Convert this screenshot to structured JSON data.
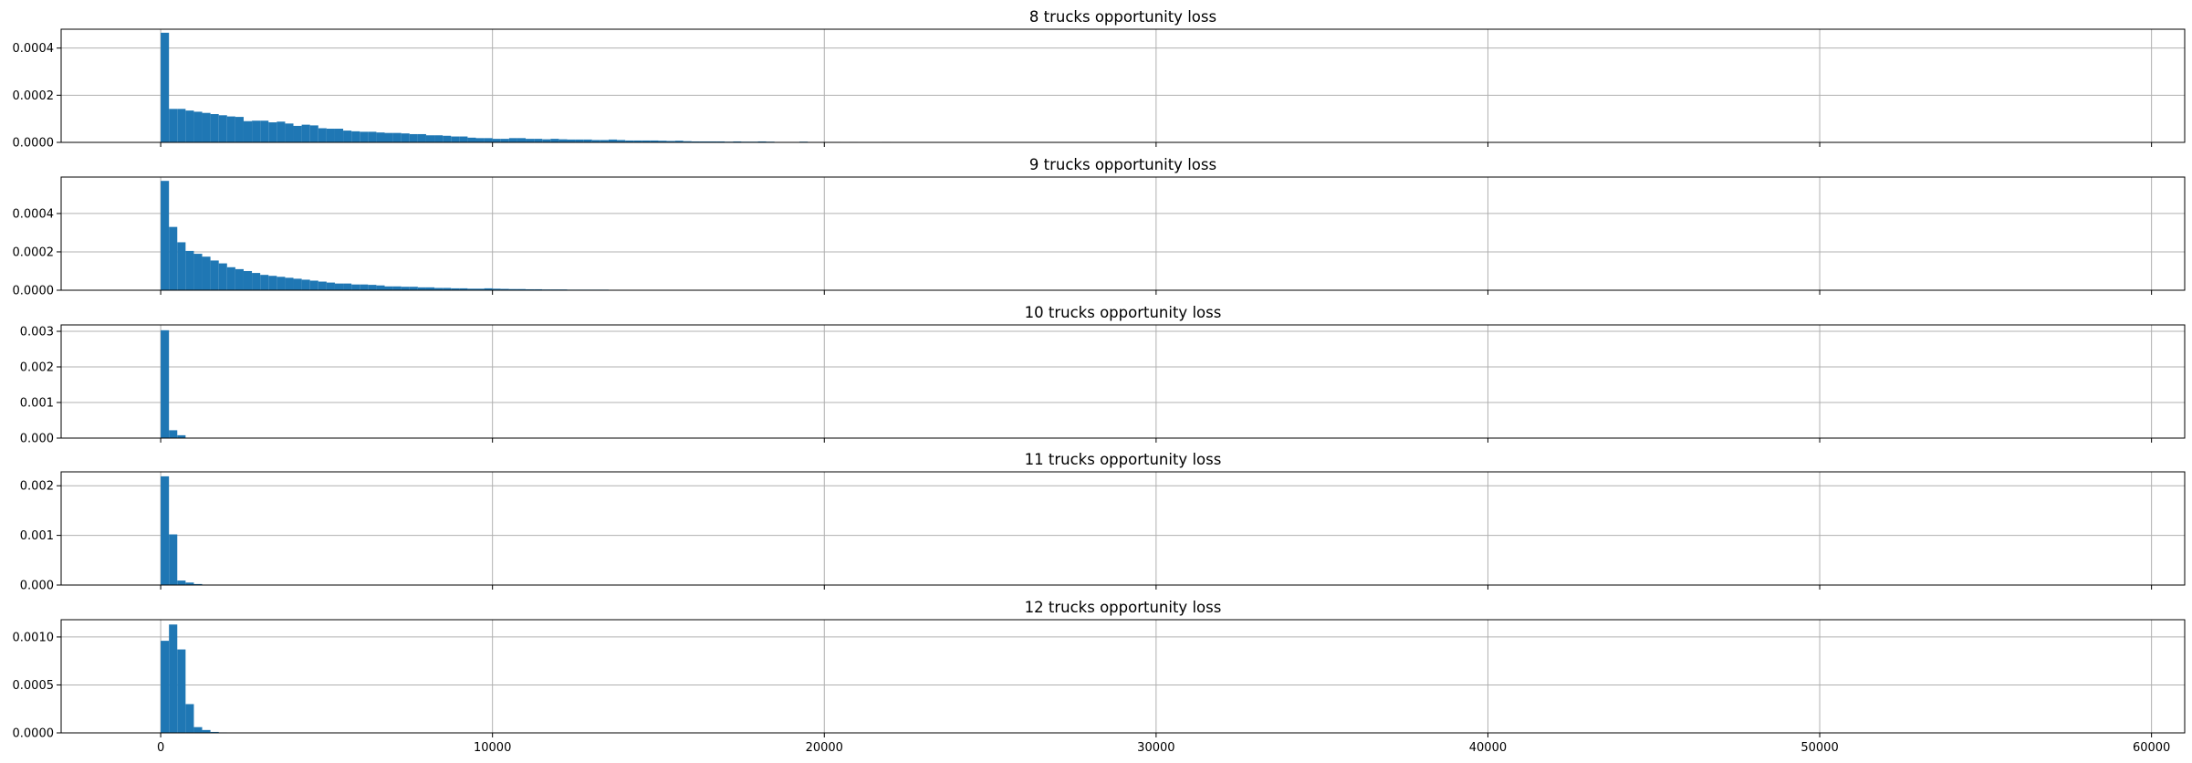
{
  "chart_data": [
    {
      "type": "bar",
      "title": "8 trucks opportunity loss",
      "xlim": [
        -3000,
        61000
      ],
      "ylim": [
        0,
        0.00048
      ],
      "xticks": [
        0,
        10000,
        20000,
        30000,
        40000,
        50000,
        60000
      ],
      "xtick_labels": [],
      "yticks": [
        0,
        0.0002,
        0.0004
      ],
      "ytick_labels": [
        "0.0000",
        "0.0002",
        "0.0004"
      ],
      "grid": true,
      "bin_width": 250,
      "bins": [
        [
          0,
          0.000465
        ],
        [
          250,
          0.000142
        ],
        [
          500,
          0.000142
        ],
        [
          750,
          0.000135
        ],
        [
          1000,
          0.00013
        ],
        [
          1250,
          0.000125
        ],
        [
          1500,
          0.00012
        ],
        [
          1750,
          0.000115
        ],
        [
          2000,
          0.00011
        ],
        [
          2250,
          0.000108
        ],
        [
          2500,
          9e-05
        ],
        [
          2750,
          9.2e-05
        ],
        [
          3000,
          9.2e-05
        ],
        [
          3250,
          8.5e-05
        ],
        [
          3500,
          8.8e-05
        ],
        [
          3750,
          8e-05
        ],
        [
          4000,
          7e-05
        ],
        [
          4250,
          7.5e-05
        ],
        [
          4500,
          7.2e-05
        ],
        [
          4750,
          6e-05
        ],
        [
          5000,
          5.8e-05
        ],
        [
          5250,
          5.8e-05
        ],
        [
          5500,
          5e-05
        ],
        [
          5750,
          4.7e-05
        ],
        [
          6000,
          4.5e-05
        ],
        [
          6250,
          4.5e-05
        ],
        [
          6500,
          4.2e-05
        ],
        [
          6750,
          4e-05
        ],
        [
          7000,
          4e-05
        ],
        [
          7250,
          3.8e-05
        ],
        [
          7500,
          3.5e-05
        ],
        [
          7750,
          3.5e-05
        ],
        [
          8000,
          3e-05
        ],
        [
          8250,
          3e-05
        ],
        [
          8500,
          2.8e-05
        ],
        [
          8750,
          2.5e-05
        ],
        [
          9000,
          2.5e-05
        ],
        [
          9250,
          2e-05
        ],
        [
          9500,
          1.8e-05
        ],
        [
          9750,
          1.8e-05
        ],
        [
          10000,
          1.5e-05
        ],
        [
          10250,
          1.5e-05
        ],
        [
          10500,
          1.8e-05
        ],
        [
          10750,
          1.8e-05
        ],
        [
          11000,
          1.5e-05
        ],
        [
          11250,
          1.5e-05
        ],
        [
          11500,
          1.3e-05
        ],
        [
          11750,
          1.5e-05
        ],
        [
          12000,
          1.3e-05
        ],
        [
          12250,
          1.2e-05
        ],
        [
          12500,
          1.2e-05
        ],
        [
          12750,
          1.2e-05
        ],
        [
          13000,
          1e-05
        ],
        [
          13250,
          1e-05
        ],
        [
          13500,
          1.2e-05
        ],
        [
          13750,
          1e-05
        ],
        [
          14000,
          8e-06
        ],
        [
          14250,
          8e-06
        ],
        [
          14500,
          8e-06
        ],
        [
          14750,
          8e-06
        ],
        [
          15000,
          7e-06
        ],
        [
          15250,
          6e-06
        ],
        [
          15500,
          7e-06
        ],
        [
          15750,
          5e-06
        ],
        [
          16000,
          4e-06
        ],
        [
          16250,
          4e-06
        ],
        [
          16500,
          4e-06
        ],
        [
          16750,
          4e-06
        ],
        [
          17000,
          3e-06
        ],
        [
          17250,
          4e-06
        ],
        [
          17500,
          3e-06
        ],
        [
          17750,
          3e-06
        ],
        [
          18000,
          4e-06
        ],
        [
          18250,
          3e-06
        ],
        [
          18500,
          2e-06
        ],
        [
          18750,
          2e-06
        ],
        [
          19000,
          2e-06
        ],
        [
          19250,
          3e-06
        ],
        [
          19500,
          2e-06
        ],
        [
          19750,
          2e-06
        ],
        [
          20000,
          2e-06
        ],
        [
          20250,
          2e-06
        ],
        [
          20750,
          2e-06
        ],
        [
          21000,
          1e-06
        ],
        [
          21250,
          1e-06
        ],
        [
          21750,
          2e-06
        ],
        [
          22500,
          1e-06
        ],
        [
          23000,
          1e-06
        ]
      ]
    },
    {
      "type": "bar",
      "title": "9 trucks opportunity loss",
      "xlim": [
        -3000,
        61000
      ],
      "ylim": [
        0,
        0.00059
      ],
      "xticks": [
        0,
        10000,
        20000,
        30000,
        40000,
        50000,
        60000
      ],
      "xtick_labels": [],
      "yticks": [
        0,
        0.0002,
        0.0004
      ],
      "ytick_labels": [
        "0.0000",
        "0.0002",
        "0.0004"
      ],
      "grid": true,
      "bin_width": 250,
      "bins": [
        [
          0,
          0.00057
        ],
        [
          250,
          0.00033
        ],
        [
          500,
          0.00025
        ],
        [
          750,
          0.000205
        ],
        [
          1000,
          0.00019
        ],
        [
          1250,
          0.000175
        ],
        [
          1500,
          0.000155
        ],
        [
          1750,
          0.00014
        ],
        [
          2000,
          0.00012
        ],
        [
          2250,
          0.00011
        ],
        [
          2500,
          0.0001
        ],
        [
          2750,
          9e-05
        ],
        [
          3000,
          8e-05
        ],
        [
          3250,
          7.5e-05
        ],
        [
          3500,
          7e-05
        ],
        [
          3750,
          6.5e-05
        ],
        [
          4000,
          6e-05
        ],
        [
          4250,
          5.5e-05
        ],
        [
          4500,
          5e-05
        ],
        [
          4750,
          4.5e-05
        ],
        [
          5000,
          4e-05
        ],
        [
          5250,
          3.5e-05
        ],
        [
          5500,
          3.5e-05
        ],
        [
          5750,
          3e-05
        ],
        [
          6000,
          3e-05
        ],
        [
          6250,
          2.8e-05
        ],
        [
          6500,
          2.5e-05
        ],
        [
          6750,
          2e-05
        ],
        [
          7000,
          2e-05
        ],
        [
          7250,
          1.8e-05
        ],
        [
          7500,
          1.8e-05
        ],
        [
          7750,
          1.5e-05
        ],
        [
          8000,
          1.5e-05
        ],
        [
          8250,
          1.2e-05
        ],
        [
          8500,
          1.2e-05
        ],
        [
          8750,
          1e-05
        ],
        [
          9000,
          1e-05
        ],
        [
          9250,
          8e-06
        ],
        [
          9500,
          8e-06
        ],
        [
          9750,
          1e-05
        ],
        [
          10000,
          8e-06
        ],
        [
          10250,
          7e-06
        ],
        [
          10500,
          6e-06
        ],
        [
          10750,
          6e-06
        ],
        [
          11000,
          5e-06
        ],
        [
          11250,
          5e-06
        ],
        [
          11500,
          4e-06
        ],
        [
          11750,
          4e-06
        ],
        [
          12000,
          4e-06
        ],
        [
          12250,
          3e-06
        ],
        [
          12500,
          3e-06
        ],
        [
          12750,
          3e-06
        ],
        [
          13000,
          3e-06
        ],
        [
          13250,
          3e-06
        ],
        [
          13500,
          2e-06
        ],
        [
          13750,
          2e-06
        ],
        [
          14000,
          2e-06
        ],
        [
          14500,
          2e-06
        ],
        [
          15000,
          1e-06
        ],
        [
          15500,
          1e-06
        ],
        [
          16000,
          1e-06
        ]
      ]
    },
    {
      "type": "bar",
      "title": "10 trucks opportunity loss",
      "xlim": [
        -3000,
        61000
      ],
      "ylim": [
        0,
        0.00318
      ],
      "xticks": [
        0,
        10000,
        20000,
        30000,
        40000,
        50000,
        60000
      ],
      "xtick_labels": [],
      "yticks": [
        0,
        0.001,
        0.002,
        0.003
      ],
      "ytick_labels": [
        "0.000",
        "0.001",
        "0.002",
        "0.003"
      ],
      "grid": true,
      "bin_width": 250,
      "bins": [
        [
          0,
          0.00303
        ],
        [
          250,
          0.00022
        ],
        [
          500,
          8e-05
        ],
        [
          750,
          1e-05
        ]
      ]
    },
    {
      "type": "bar",
      "title": "11 trucks opportunity loss",
      "xlim": [
        -3000,
        61000
      ],
      "ylim": [
        0,
        0.00228
      ],
      "xticks": [
        0,
        10000,
        20000,
        30000,
        40000,
        50000,
        60000
      ],
      "xtick_labels": [],
      "yticks": [
        0,
        0.001,
        0.002
      ],
      "ytick_labels": [
        "0.000",
        "0.001",
        "0.002"
      ],
      "grid": true,
      "bin_width": 250,
      "bins": [
        [
          0,
          0.00219
        ],
        [
          250,
          0.00102
        ],
        [
          500,
          9e-05
        ],
        [
          750,
          5e-05
        ],
        [
          1000,
          2e-05
        ]
      ]
    },
    {
      "type": "bar",
      "title": "12 trucks opportunity loss",
      "xlim": [
        -3000,
        61000
      ],
      "ylim": [
        0,
        0.00118
      ],
      "xticks": [
        0,
        10000,
        20000,
        30000,
        40000,
        50000,
        60000
      ],
      "xtick_labels": [
        "0",
        "10000",
        "20000",
        "30000",
        "40000",
        "50000",
        "60000"
      ],
      "yticks": [
        0,
        0.0005,
        0.001
      ],
      "ytick_labels": [
        "0.0000",
        "0.0005",
        "0.0010"
      ],
      "grid": true,
      "bin_width": 250,
      "bins": [
        [
          0,
          0.00096
        ],
        [
          250,
          0.00113
        ],
        [
          500,
          0.00087
        ],
        [
          750,
          0.0003
        ],
        [
          1000,
          6e-05
        ],
        [
          1250,
          3e-05
        ],
        [
          1500,
          1e-05
        ],
        [
          1750,
          5e-06
        ]
      ]
    }
  ],
  "colors": {
    "bar": "#1f77b4",
    "grid": "#b0b0b0",
    "axes": "#000000",
    "text": "#000000",
    "background": "#ffffff"
  }
}
